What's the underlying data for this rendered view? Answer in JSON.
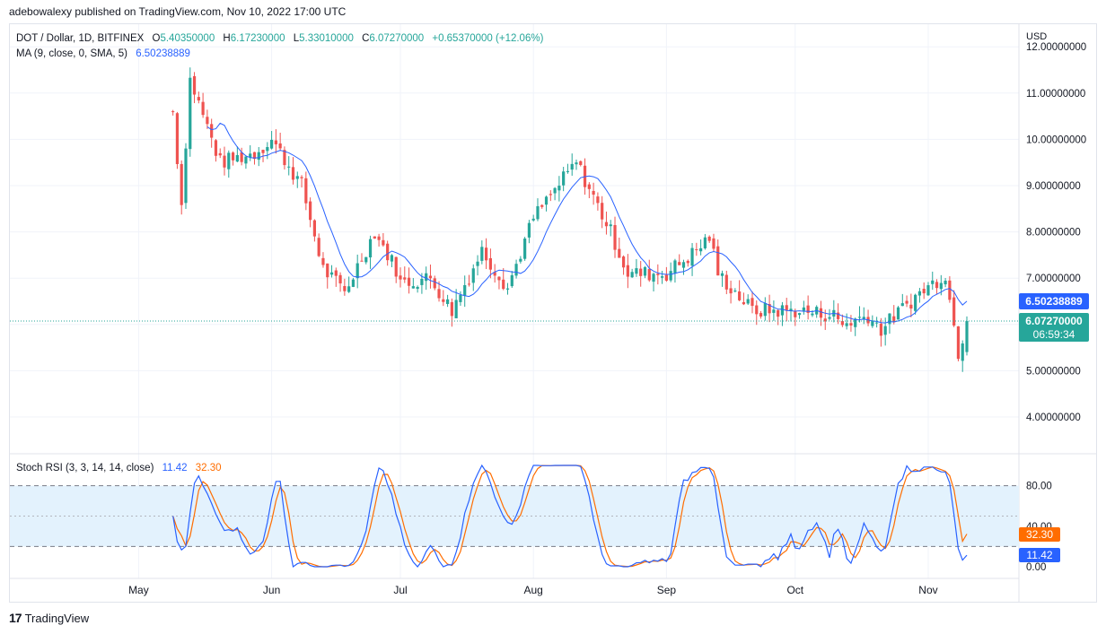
{
  "header": {
    "published": "adebowalexy published on TradingView.com, Nov 10, 2022 17:00 UTC"
  },
  "legend": {
    "symbol": "DOT / Dollar, 1D, BITFINEX",
    "o_label": "O",
    "o_value": "5.40350000",
    "h_label": "H",
    "h_value": "6.17230000",
    "l_label": "L",
    "l_value": "5.33010000",
    "c_label": "C",
    "c_value": "6.07270000",
    "change": "+0.65370000 (+12.06%)",
    "ma_label": "MA (9, close, 0, SMA, 5)",
    "ma_value": "6.50238889"
  },
  "price_axis": {
    "currency": "USD",
    "ticks": [
      "4.00000000",
      "5.00000000",
      "6.00000000",
      "7.00000000",
      "8.00000000",
      "9.00000000",
      "10.00000000",
      "11.00000000",
      "12.00000000"
    ],
    "ma_badge": "6.50238889",
    "close_badge": "6.07270000",
    "countdown": "06:59:34"
  },
  "rsi": {
    "label": "Stoch RSI (3, 3, 14, 14, close)",
    "k_value": "11.42",
    "d_value": "32.30",
    "ticks": [
      "0.00",
      "40.00",
      "80.00"
    ],
    "band_upper": 80,
    "band_middle": 50,
    "band_lower": 20
  },
  "x_axis": {
    "labels": [
      "May",
      "Jun",
      "Jul",
      "Aug",
      "Sep",
      "Oct",
      "Nov"
    ]
  },
  "colors": {
    "up": "#26a69a",
    "down": "#ef5350",
    "ma": "#2962ff",
    "rsi_k": "#2962ff",
    "rsi_d": "#ff6d00",
    "band": "#e3f2fd"
  },
  "footer": {
    "brand": "TradingView"
  },
  "chart_data": [
    {
      "type": "candlestick",
      "title": "DOT / Dollar, 1D, BITFINEX",
      "ylim": [
        3.3,
        12.2
      ],
      "x_dates": [
        "2022-04-01",
        "2022-11-10"
      ],
      "ohlc_anchor_closes": [
        [
          "2022-05-09",
          10.6
        ],
        [
          "2022-05-11",
          8.6
        ],
        [
          "2022-05-13",
          11.3
        ],
        [
          "2022-05-20",
          9.5
        ],
        [
          "2022-05-28",
          9.7
        ],
        [
          "2022-06-01",
          10.0
        ],
        [
          "2022-06-08",
          9.0
        ],
        [
          "2022-06-13",
          7.2
        ],
        [
          "2022-06-18",
          6.7
        ],
        [
          "2022-06-25",
          8.0
        ],
        [
          "2022-06-30",
          7.2
        ],
        [
          "2022-07-01",
          6.9
        ],
        [
          "2022-07-08",
          7.0
        ],
        [
          "2022-07-13",
          6.3
        ],
        [
          "2022-07-20",
          7.6
        ],
        [
          "2022-07-26",
          6.8
        ],
        [
          "2022-08-01",
          8.3
        ],
        [
          "2022-08-11",
          9.5
        ],
        [
          "2022-08-19",
          8.0
        ],
        [
          "2022-08-23",
          7.1
        ],
        [
          "2022-09-01",
          7.1
        ],
        [
          "2022-09-08",
          7.6
        ],
        [
          "2022-09-11",
          7.9
        ],
        [
          "2022-09-13",
          7.1
        ],
        [
          "2022-09-21",
          6.3
        ],
        [
          "2022-10-01",
          6.3
        ],
        [
          "2022-10-10",
          6.2
        ],
        [
          "2022-10-12",
          6.0
        ],
        [
          "2022-10-18",
          6.2
        ],
        [
          "2022-10-21",
          5.9
        ],
        [
          "2022-10-29",
          6.6
        ],
        [
          "2022-11-05",
          7.1
        ],
        [
          "2022-11-08",
          5.4
        ],
        [
          "2022-11-10",
          6.07
        ]
      ],
      "last": {
        "open": 5.4035,
        "high": 6.1723,
        "low": 5.3301,
        "close": 6.0727,
        "change": 0.6537,
        "change_pct": 12.06
      },
      "ma": {
        "name": "MA (9, close, 0, SMA, 5)",
        "last": 6.50238889
      }
    },
    {
      "type": "line",
      "title": "Stoch RSI (3, 3, 14, 14, close)",
      "ylim": [
        0,
        100
      ],
      "series": [
        {
          "name": "K",
          "last": 11.42
        },
        {
          "name": "D",
          "last": 32.3
        }
      ]
    }
  ]
}
